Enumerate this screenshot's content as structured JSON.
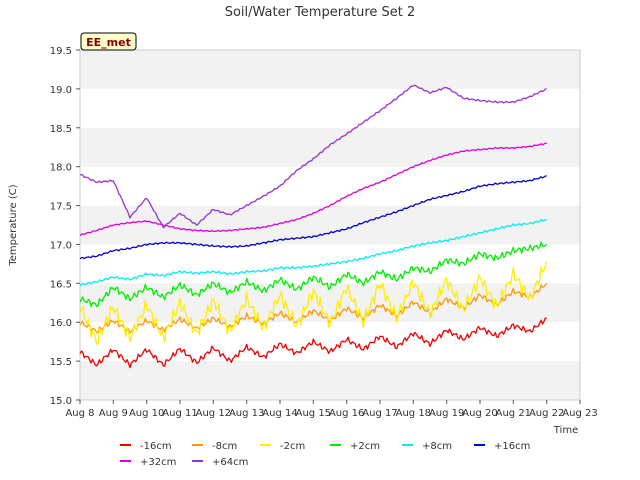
{
  "chart_data": {
    "type": "line",
    "title": "Soil/Water Temperature Set 2",
    "xlabel": "Time",
    "ylabel": "Temperature (C)",
    "annotation": "EE_met",
    "xlim": [
      8,
      23
    ],
    "ylim": [
      15.0,
      19.5
    ],
    "x_ticks": [
      8,
      9,
      10,
      11,
      12,
      13,
      14,
      15,
      16,
      17,
      18,
      19,
      20,
      21,
      22,
      23
    ],
    "x_tick_labels": [
      "Aug 8",
      "Aug 9",
      "Aug 10",
      "Aug 11",
      "Aug 12",
      "Aug 13",
      "Aug 14",
      "Aug 15",
      "Aug 16",
      "Aug 17",
      "Aug 18",
      "Aug 19",
      "Aug 20",
      "Aug 21",
      "Aug 22",
      "Aug 23"
    ],
    "y_ticks": [
      15.0,
      15.5,
      16.0,
      16.5,
      17.0,
      17.5,
      18.0,
      18.5,
      19.0,
      19.5
    ],
    "y_tick_labels": [
      "15.0",
      "15.5",
      "16.0",
      "16.5",
      "17.0",
      "17.5",
      "18.0",
      "18.5",
      "19.0",
      "19.5"
    ],
    "grid": true,
    "legend_position": "bottom",
    "x": [
      8.0,
      8.5,
      9.0,
      9.5,
      10.0,
      10.5,
      11.0,
      11.5,
      12.0,
      12.5,
      13.0,
      13.5,
      14.0,
      14.5,
      15.0,
      15.5,
      16.0,
      16.5,
      17.0,
      17.5,
      18.0,
      18.5,
      19.0,
      19.5,
      20.0,
      20.5,
      21.0,
      21.5,
      22.0
    ],
    "series": [
      {
        "name": "-16cm",
        "color": "#ee0000",
        "values": [
          15.62,
          15.45,
          15.65,
          15.45,
          15.65,
          15.45,
          15.66,
          15.48,
          15.67,
          15.5,
          15.68,
          15.55,
          15.72,
          15.6,
          15.75,
          15.62,
          15.78,
          15.65,
          15.82,
          15.68,
          15.86,
          15.72,
          15.9,
          15.78,
          15.93,
          15.82,
          15.96,
          15.88,
          16.05
        ]
      },
      {
        "name": "-8cm",
        "color": "#ff9900",
        "values": [
          16.0,
          15.88,
          16.02,
          15.88,
          16.02,
          15.9,
          16.04,
          15.92,
          16.05,
          15.94,
          16.08,
          15.98,
          16.12,
          16.0,
          16.15,
          16.02,
          16.18,
          16.05,
          16.22,
          16.08,
          16.26,
          16.12,
          16.3,
          16.18,
          16.35,
          16.22,
          16.4,
          16.32,
          16.5
        ]
      },
      {
        "name": "-2cm",
        "color": "#ffee00",
        "values": [
          16.2,
          15.75,
          16.2,
          15.8,
          16.22,
          15.8,
          16.25,
          15.85,
          16.28,
          15.88,
          16.3,
          15.92,
          16.35,
          15.95,
          16.4,
          15.98,
          16.45,
          16.0,
          16.5,
          16.05,
          16.52,
          16.1,
          16.55,
          16.15,
          16.58,
          16.2,
          16.62,
          16.3,
          16.78
        ]
      },
      {
        "name": "+2cm",
        "color": "#00ee00",
        "values": [
          16.3,
          16.22,
          16.45,
          16.3,
          16.45,
          16.32,
          16.48,
          16.35,
          16.5,
          16.38,
          16.52,
          16.4,
          16.55,
          16.42,
          16.58,
          16.45,
          16.62,
          16.5,
          16.65,
          16.55,
          16.7,
          16.65,
          16.8,
          16.75,
          16.88,
          16.82,
          16.92,
          16.95,
          17.0
        ]
      },
      {
        "name": "+8cm",
        "color": "#00eeee",
        "values": [
          16.48,
          16.52,
          16.58,
          16.55,
          16.62,
          16.6,
          16.65,
          16.63,
          16.65,
          16.62,
          16.65,
          16.66,
          16.7,
          16.7,
          16.72,
          16.75,
          16.78,
          16.82,
          16.88,
          16.92,
          16.98,
          17.02,
          17.05,
          17.1,
          17.15,
          17.2,
          17.25,
          17.27,
          17.32
        ]
      },
      {
        "name": "+16cm",
        "color": "#0000cc",
        "values": [
          16.82,
          16.85,
          16.92,
          16.95,
          17.0,
          17.02,
          17.02,
          17.0,
          16.98,
          16.97,
          16.98,
          17.02,
          17.06,
          17.08,
          17.1,
          17.15,
          17.2,
          17.28,
          17.35,
          17.42,
          17.5,
          17.58,
          17.63,
          17.68,
          17.75,
          17.78,
          17.8,
          17.82,
          17.88
        ]
      },
      {
        "name": "+32cm",
        "color": "#dd00dd",
        "values": [
          17.12,
          17.18,
          17.25,
          17.28,
          17.3,
          17.25,
          17.2,
          17.18,
          17.17,
          17.18,
          17.2,
          17.22,
          17.27,
          17.32,
          17.4,
          17.5,
          17.62,
          17.72,
          17.8,
          17.9,
          18.0,
          18.08,
          18.15,
          18.2,
          18.22,
          18.24,
          18.24,
          18.26,
          18.3
        ]
      },
      {
        "name": "+64cm",
        "color": "#9933cc",
        "values": [
          17.9,
          17.8,
          17.82,
          17.35,
          17.6,
          17.22,
          17.4,
          17.25,
          17.45,
          17.38,
          17.5,
          17.62,
          17.75,
          17.95,
          18.1,
          18.28,
          18.42,
          18.57,
          18.72,
          18.88,
          19.05,
          18.95,
          19.02,
          18.88,
          18.85,
          18.83,
          18.83,
          18.9,
          19.0
        ]
      }
    ]
  }
}
